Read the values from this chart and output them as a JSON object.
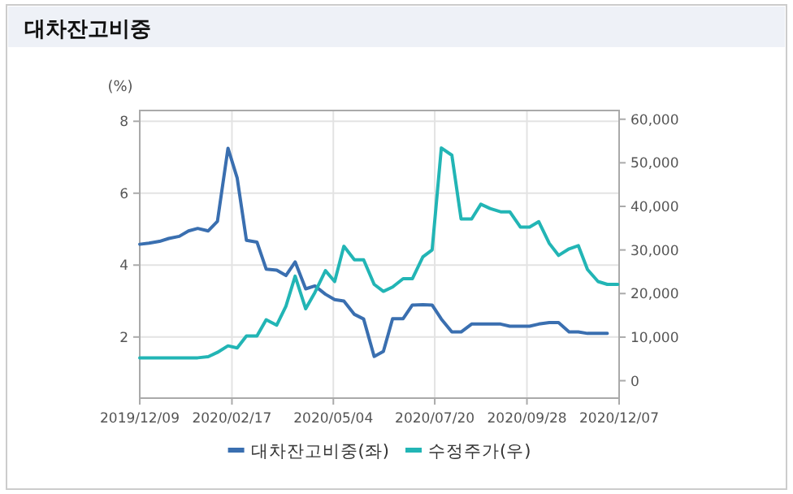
{
  "chart_data": {
    "type": "line",
    "title": "대차잔고비중",
    "ylabel": "(%)",
    "x": [
      "2019-12-09",
      "2019-12-16",
      "2019-12-24",
      "2019-12-31",
      "2020-01-08",
      "2020-01-15",
      "2020-01-22",
      "2020-01-30",
      "2020-02-06",
      "2020-02-14",
      "2020-02-21",
      "2020-02-28",
      "2020-03-07",
      "2020-03-14",
      "2020-03-22",
      "2020-03-29",
      "2020-04-05",
      "2020-04-13",
      "2020-04-20",
      "2020-04-28",
      "2020-05-05",
      "2020-05-12",
      "2020-05-20",
      "2020-05-27",
      "2020-06-04",
      "2020-06-11",
      "2020-06-18",
      "2020-06-26",
      "2020-07-03",
      "2020-07-11",
      "2020-07-18",
      "2020-07-25",
      "2020-08-02",
      "2020-08-09",
      "2020-08-17",
      "2020-08-24",
      "2020-08-31",
      "2020-09-08",
      "2020-09-15",
      "2020-09-23",
      "2020-09-30",
      "2020-10-07",
      "2020-10-15",
      "2020-10-22",
      "2020-10-30",
      "2020-11-06",
      "2020-11-13",
      "2020-11-21",
      "2020-11-28",
      "2020-12-06"
    ],
    "series": [
      {
        "name": "대차잔고비중(좌)",
        "color": "#3a6fb0",
        "values": [
          4.58,
          4.61,
          4.66,
          4.74,
          4.8,
          4.95,
          5.02,
          4.95,
          5.22,
          7.25,
          6.42,
          4.69,
          4.64,
          3.89,
          3.86,
          3.71,
          4.09,
          3.34,
          3.42,
          3.19,
          3.04,
          3.0,
          2.63,
          2.5,
          1.46,
          1.6,
          2.51,
          2.51,
          2.89,
          2.9,
          2.89,
          2.5,
          2.14,
          2.14,
          2.36,
          2.36,
          2.36,
          2.36,
          2.3,
          2.3,
          2.3,
          2.36,
          2.4,
          2.4,
          2.14,
          2.14,
          2.1,
          2.1,
          2.1,
          null
        ]
      },
      {
        "name": "수정주가(우)",
        "color": "#22b5b5",
        "axis": "y2",
        "values": [
          5250,
          5250,
          5250,
          5250,
          5250,
          5250,
          5250,
          5500,
          6500,
          8000,
          7500,
          10250,
          10250,
          14000,
          12750,
          17100,
          24000,
          16500,
          20250,
          25250,
          22750,
          30850,
          27750,
          27750,
          22100,
          20500,
          21500,
          23400,
          23400,
          28400,
          30000,
          53400,
          51750,
          37100,
          37100,
          40500,
          39500,
          38750,
          38750,
          35250,
          35250,
          36500,
          31500,
          28750,
          30250,
          31000,
          25500,
          22750,
          22100,
          22100
        ]
      }
    ],
    "xlim": [
      "2019-12-09",
      "2020-12-07"
    ],
    "xticks": [
      {
        "value": "2019-12-09",
        "label": "2019/12/09"
      },
      {
        "value": "2020-02-17",
        "label": "2020/02/17"
      },
      {
        "value": "2020-05-04",
        "label": "2020/05/04"
      },
      {
        "value": "2020-07-20",
        "label": "2020/07/20"
      },
      {
        "value": "2020-09-28",
        "label": "2020/09/28"
      },
      {
        "value": "2020-12-07",
        "label": "2020/12/07"
      }
    ],
    "ylim": [
      0.3,
      8.3
    ],
    "yticks": [
      2,
      4,
      6,
      8
    ],
    "y2lim": [
      -4000,
      62000
    ],
    "y2ticks": [
      0,
      {
        "value": 10000,
        "label": "10,000"
      },
      {
        "value": 20000,
        "label": "20,000"
      },
      {
        "value": 30000,
        "label": "30,000"
      },
      {
        "value": 40000,
        "label": "40,000"
      },
      {
        "value": 50000,
        "label": "50,000"
      },
      {
        "value": 60000,
        "label": "60,000"
      }
    ],
    "grid": true,
    "legend": "bottom"
  }
}
